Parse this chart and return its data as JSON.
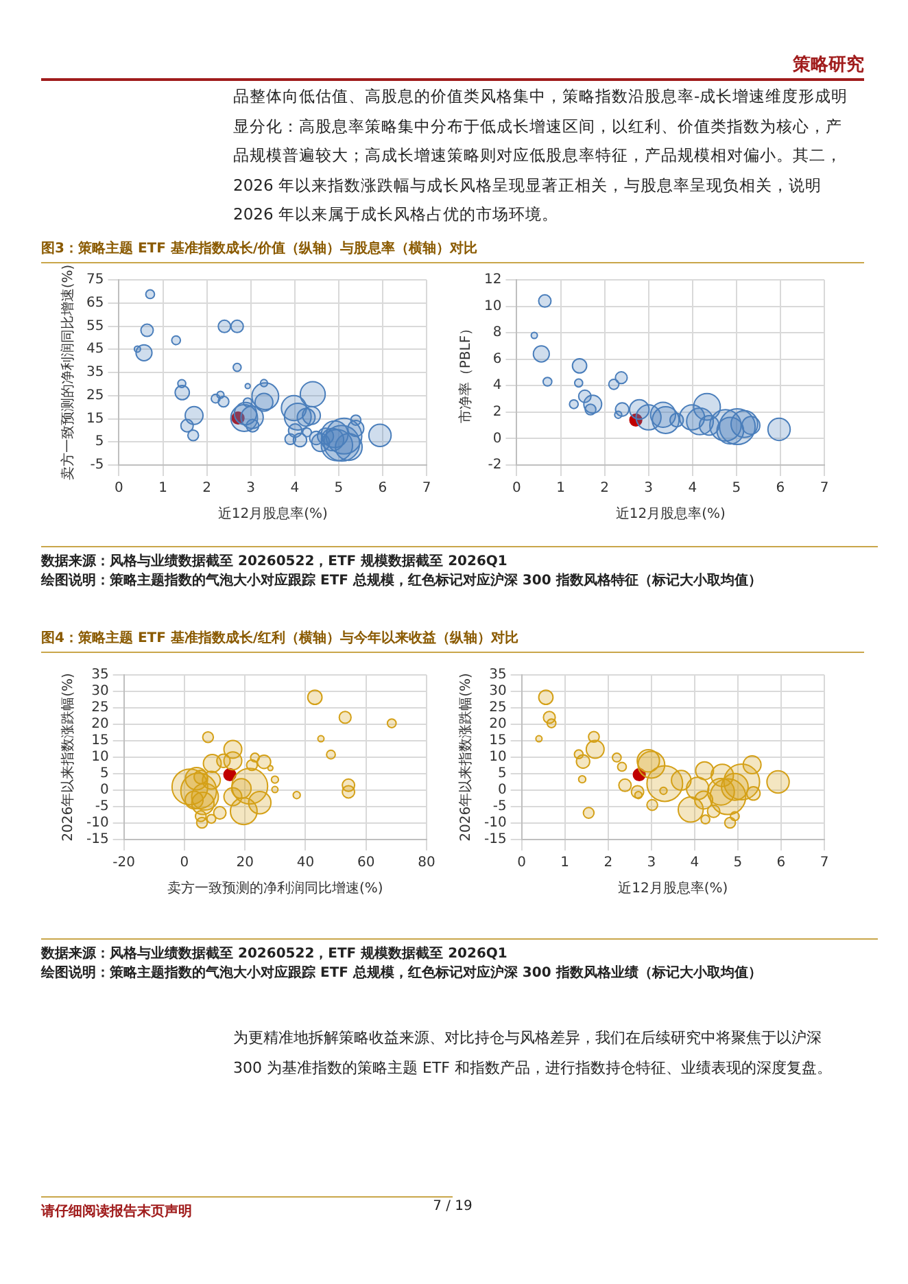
{
  "chart_data": [
    {
      "type": "bubble",
      "title": "图3：策略主题 ETF 基准指数成长/价值（纵轴）与股息率（横轴）对比",
      "xlabel": "近12月股息率(%)",
      "ylabel": "卖方一致预测的净利润同比增速(%)",
      "xlim": [
        0,
        7
      ],
      "xticks": [
        0,
        1,
        2,
        3,
        4,
        5,
        6,
        7
      ],
      "ylim": [
        -5,
        75
      ],
      "yticks": [
        -5,
        5,
        15,
        25,
        35,
        45,
        55,
        65,
        75
      ],
      "grid": true,
      "annotations": [
        "策略研究",
        "品整体向低估值、高股息的价值类风格集中，策略指数沿股息率-成长增速维度形成明显分化：高股息率策略集中分布于低成长增速区间，以红利、价值类指数为核心，产品规模普遍较大；高成长增速策略则对应低股息率特征，产品规模相对偏小。其二，2026 年以来指数涨跌幅与成长风格呈现显著正相关，与股息率呈现负相关，说明 2026 年以来属于成长风格占优的市场环境。"
      ],
      "series": [
        {
          "type": "bubble",
          "color": "#4a7ebb",
          "x": [
            0.71,
            0.64,
            0.42,
            0.57,
            1.3,
            2.4,
            2.69,
            2.69,
            1.43,
            1.44,
            1.71,
            1.55,
            1.69,
            2.2,
            2.31,
            2.38,
            2.93,
            3.3,
            3.33,
            3.3,
            2.93,
            2.88,
            2.85,
            3.03,
            3.04,
            4.41,
            3.98,
            4.07,
            4.26,
            4.38,
            3.9,
            4.01,
            4.12,
            4.28,
            4.49,
            4.7,
            4.91,
            5.12,
            4.96,
            4.86,
            5.07,
            5.23,
            5.39,
            5.39,
            5.94,
            4.59
          ],
          "values": [
            68.8,
            53.2,
            45.1,
            43.5,
            48.9,
            54.9,
            54.9,
            37.2,
            30.2,
            26.3,
            16.4,
            12,
            7.8,
            23.7,
            25.3,
            22.4,
            29.1,
            30.4,
            24.7,
            22.1,
            22.1,
            17.2,
            15.3,
            15.6,
            12,
            25.6,
            19.6,
            15.9,
            15.6,
            16.4,
            6.2,
            9.9,
            5.8,
            9.1,
            6.7,
            7.5,
            8.3,
            7.5,
            3.6,
            6,
            4.4,
            2.8,
            14.4,
            10.8,
            7.8,
            4.7
          ],
          "sizes": [
            0.06,
            0.12,
            0.03,
            0.2,
            0.06,
            0.12,
            0.12,
            0.05,
            0.05,
            0.16,
            0.25,
            0.12,
            0.09,
            0.06,
            0.04,
            0.09,
            0.02,
            0.04,
            0.56,
            0.25,
            0.06,
            0.39,
            0.56,
            0.39,
            0.12,
            0.49,
            0.49,
            0.56,
            0.25,
            0.25,
            0.09,
            0.14,
            0.14,
            0.06,
            0.14,
            0.2,
            0.56,
            1,
            0.77,
            0.39,
            1,
            0.56,
            0.08,
            0.2,
            0.39,
            0.25
          ]
        },
        {
          "type": "scatter",
          "color": "#c00000",
          "x": [
            2.71
          ],
          "values": [
            15.3
          ],
          "sizes": [
            0.11
          ]
        }
      ]
    },
    {
      "type": "bubble",
      "xlabel": "近12月股息率(%)",
      "ylabel": "市净率（PBLF）",
      "xlim": [
        0,
        7
      ],
      "xticks": [
        0,
        1,
        2,
        3,
        4,
        5,
        6,
        7
      ],
      "ylim": [
        -2,
        12
      ],
      "yticks": [
        -2,
        0,
        2,
        4,
        6,
        8,
        10,
        12
      ],
      "grid": true,
      "annotations": [
        "数据来源：风格与业绩数据截至 20260522，ETF 规模数据截至 2026Q1",
        "绘图说明：策略主题指数的气泡大小对应跟踪 ETF 总规模，红色标记对应沪深 300 指数风格特征（标记大小取均值）"
      ],
      "series": [
        {
          "type": "bubble",
          "color": "#4a7ebb",
          "x": [
            0.64,
            0.4,
            0.56,
            0.7,
            1.43,
            1.41,
            1.55,
            1.3,
            1.73,
            1.68,
            2.38,
            2.21,
            2.4,
            2.31,
            2.79,
            3.0,
            3.33,
            3.39,
            4.33,
            3.99,
            4.17,
            4.38,
            4.75,
            5.02,
            5.18,
            4.86,
            5.33,
            5.97,
            3.64
          ],
          "values": [
            10.4,
            7.8,
            6.4,
            4.3,
            5.5,
            4.2,
            3.2,
            2.6,
            2.6,
            2.2,
            4.6,
            4.1,
            2.2,
            1.8,
            2.2,
            1.6,
            1.8,
            1.4,
            2.4,
            1.6,
            1.3,
            1,
            1,
            0.9,
            1.1,
            0.6,
            1,
            0.7,
            1.4
          ],
          "sizes": [
            0.12,
            0.03,
            0.2,
            0.06,
            0.16,
            0.05,
            0.12,
            0.06,
            0.25,
            0.09,
            0.11,
            0.08,
            0.14,
            0.04,
            0.3,
            0.49,
            0.49,
            0.56,
            0.56,
            0.49,
            0.56,
            0.3,
            0.77,
            1,
            0.56,
            0.56,
            0.25,
            0.39,
            0.14
          ]
        },
        {
          "type": "scatter",
          "color": "#c00000",
          "x": [
            2.71
          ],
          "values": [
            1.4
          ],
          "sizes": [
            0.11
          ]
        }
      ]
    },
    {
      "type": "bubble",
      "title": "图4：策略主题 ETF 基准指数成长/红利（横轴）与今年以来收益（纵轴）对比",
      "xlabel": "卖方一致预测的净利润同比增速(%)",
      "ylabel": "2026年以来指数涨跌幅(%)",
      "xlim": [
        -20,
        80
      ],
      "xticks": [
        -20,
        0,
        20,
        40,
        60,
        80
      ],
      "ylim": [
        -15,
        35
      ],
      "yticks": [
        -15,
        -10,
        -5,
        0,
        5,
        10,
        15,
        20,
        25,
        30,
        35
      ],
      "grid": true,
      "series": [
        {
          "type": "bubble",
          "color": "#d4a017",
          "x": [
            43.1,
            53.1,
            68.5,
            45.1,
            48.4,
            54.2,
            54.2,
            37.1,
            29.9,
            29.9,
            28.4,
            26.3,
            23.3,
            22.3,
            16,
            16,
            12.9,
            9.2,
            7.8,
            21.6,
            24.9,
            19.6,
            18.8,
            16,
            11.7,
            8.9,
            5.8,
            5.4,
            4.7,
            1.8,
            6.8,
            6.1,
            8.9,
            4,
            5.4,
            3.2
          ],
          "values": [
            28.2,
            22.1,
            20.3,
            15.6,
            10.8,
            1.5,
            -0.5,
            -1.5,
            3.2,
            0.2,
            6.7,
            8.6,
            9.9,
            7.6,
            12.4,
            8.9,
            8.9,
            8.1,
            16.1,
            1.2,
            -3.8,
            -6.4,
            0.5,
            -2,
            -6.9,
            -8.7,
            -9.9,
            -7.9,
            -0.2,
            1,
            -2,
            -4,
            3,
            3.5,
            4,
            -3
          ],
          "sizes": [
            0.16,
            0.11,
            0.06,
            0.03,
            0.06,
            0.12,
            0.12,
            0.04,
            0.04,
            0.03,
            0.02,
            0.14,
            0.06,
            0.09,
            0.25,
            0.25,
            0.14,
            0.25,
            0.09,
            1,
            0.39,
            0.56,
            0.3,
            0.25,
            0.12,
            0.06,
            0.09,
            0.09,
            1,
            1,
            0.56,
            0.39,
            0.25,
            0.39,
            0.14,
            0.25
          ]
        },
        {
          "type": "scatter",
          "color": "#c00000",
          "x": [
            15
          ],
          "values": [
            4.7
          ],
          "sizes": [
            0.11
          ]
        }
      ]
    },
    {
      "type": "bubble",
      "xlabel": "近12月股息率(%)",
      "ylabel": "2026年以来指数涨跌幅(%)",
      "xlim": [
        0,
        7
      ],
      "xticks": [
        0,
        1,
        2,
        3,
        4,
        5,
        6,
        7
      ],
      "ylim": [
        -15,
        35
      ],
      "yticks": [
        -15,
        -10,
        -5,
        0,
        5,
        10,
        15,
        20,
        25,
        30,
        35
      ],
      "grid": true,
      "annotations": [
        "数据来源：风格与业绩数据截至 20260522，ETF 规模数据截至 2026Q1",
        "绘图说明：策略主题指数的气泡大小对应跟踪 ETF 总规模，红色标记对应沪深 300 指数风格业绩（标记大小取均值）",
        "为更精准地拆解策略收益来源、对比持仓与风格差异，我们在后续研究中将聚焦于以沪深 300 为基准指数的策略主题 ETF 和指数产品，进行指数持仓特征、业绩表现的深度复盘。",
        "请仔细阅读报告末页声明",
        "7 / 19"
      ],
      "series": [
        {
          "type": "bubble",
          "color": "#d4a017",
          "x": [
            0.56,
            0.64,
            0.69,
            0.4,
            1.67,
            1.7,
            1.32,
            1.42,
            1.4,
            1.55,
            2.2,
            2.32,
            2.39,
            2.68,
            2.7,
            2.93,
            3.0,
            3.31,
            3.02,
            3.28,
            3.69,
            3.91,
            4.07,
            4.23,
            4.21,
            4.25,
            4.44,
            4.61,
            4.77,
            4.93,
            5.09,
            4.82,
            4.93,
            5.33,
            5.36,
            5.93,
            4.64
          ],
          "values": [
            28.2,
            22.1,
            20.3,
            15.6,
            16.2,
            12.4,
            10.9,
            8.7,
            3.3,
            -6.9,
            9.9,
            7.1,
            1.5,
            -0.5,
            -1.5,
            8.9,
            7.7,
            2,
            -4.5,
            -0.2,
            3,
            -5.9,
            0.5,
            5.9,
            -3,
            -8.9,
            -6.4,
            -0.5,
            -2,
            1,
            2.5,
            -9.9,
            -7.9,
            7.7,
            -1,
            2.5,
            4.5
          ],
          "sizes": [
            0.16,
            0.11,
            0.06,
            0.03,
            0.09,
            0.25,
            0.06,
            0.14,
            0.04,
            0.09,
            0.06,
            0.06,
            0.12,
            0.12,
            0.04,
            0.39,
            0.56,
            1,
            0.09,
            0.04,
            0.3,
            0.49,
            0.39,
            0.25,
            0.25,
            0.06,
            0.12,
            0.56,
            1,
            0.56,
            1,
            0.09,
            0.06,
            0.25,
            0.14,
            0.39,
            0.39
          ]
        },
        {
          "type": "scatter",
          "color": "#c00000",
          "x": [
            2.72
          ],
          "values": [
            4.7
          ],
          "sizes": [
            0.11
          ]
        }
      ]
    }
  ]
}
